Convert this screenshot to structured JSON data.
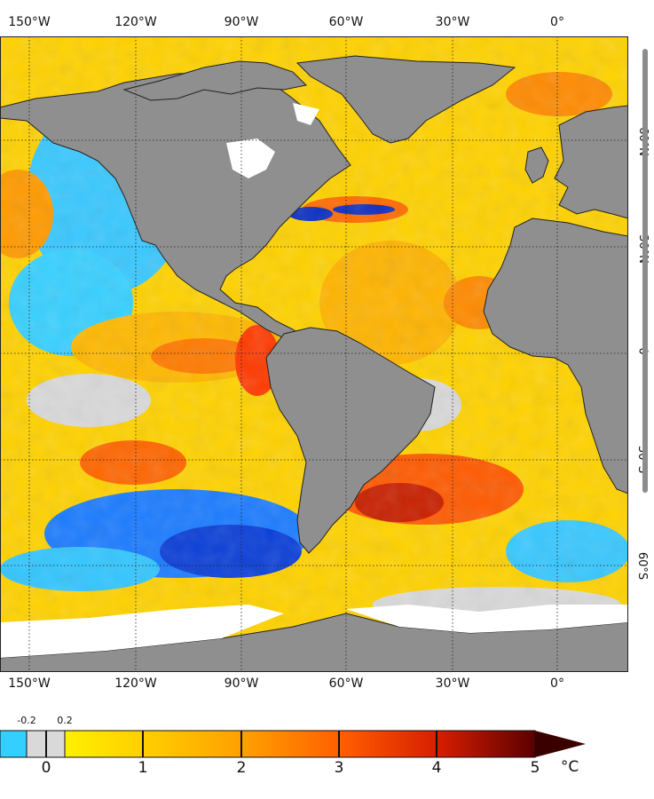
{
  "map": {
    "lon_labels": [
      "150°W",
      "120°W",
      "90°W",
      "60°W",
      "30°W",
      "0°"
    ],
    "lat_labels": [
      "60°N",
      "30°N",
      "0",
      "30°S",
      "60°S"
    ],
    "colors": {
      "land": "#8f8f8f",
      "ice": "#ffffff",
      "ocean_neutral": "#d8d8d8"
    }
  },
  "colorbar": {
    "major_ticks": [
      "0",
      "1",
      "2",
      "3",
      "4",
      "5"
    ],
    "minor_ticks": [
      "-0.2",
      "0.2"
    ],
    "unit": "°C",
    "colors": [
      "#0b2fc0",
      "#1ea4ff",
      "#39d3ff",
      "#d9d9d9",
      "#ffee00",
      "#ffc800",
      "#ff9a00",
      "#ff5a00",
      "#e02000",
      "#9c0e00",
      "#3a0000"
    ]
  }
}
